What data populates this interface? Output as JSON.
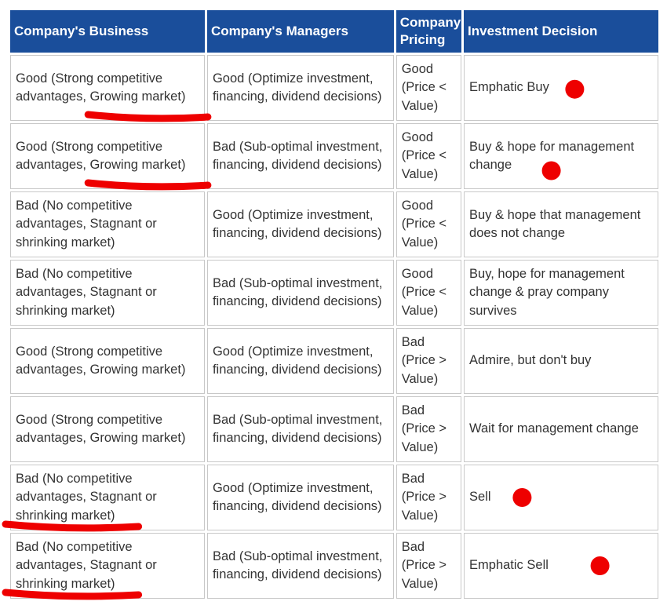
{
  "table": {
    "headers": [
      "Company's Business",
      "Company's Managers",
      "Company Pricing",
      "Investment Decision"
    ],
    "rows": [
      [
        "Good (Strong competitive advantages, Growing market)",
        "Good (Optimize investment, financing, dividend decisions)",
        "Good (Price < Value)",
        "Emphatic Buy"
      ],
      [
        "Good (Strong competitive advantages, Growing market)",
        "Bad (Sub-optimal investment, financing, dividend decisions)",
        "Good (Price < Value)",
        "Buy & hope for management change"
      ],
      [
        "Bad (No competitive advantages, Stagnant or shrinking market)",
        "Good (Optimize investment, financing, dividend decisions)",
        "Good (Price < Value)",
        "Buy & hope that management does not change"
      ],
      [
        "Bad (No competitive advantages, Stagnant or shrinking market)",
        "Bad (Sub-optimal investment, financing, dividend decisions)",
        "Good (Price < Value)",
        "Buy, hope for management change & pray company survives"
      ],
      [
        "Good (Strong competitive advantages, Growing market)",
        "Good (Optimize investment, financing, dividend decisions)",
        "Bad (Price > Value)",
        "Admire, but don't buy"
      ],
      [
        "Good (Strong competitive advantages, Growing market)",
        "Bad (Sub-optimal investment, financing, dividend decisions)",
        "Bad (Price > Value)",
        "Wait for management change"
      ],
      [
        "Bad (No competitive advantages, Stagnant or shrinking market)",
        "Good (Optimize investment, financing, dividend decisions)",
        "Bad (Price > Value)",
        "Sell"
      ],
      [
        "Bad (No competitive advantages, Stagnant or shrinking market)",
        "Bad (Sub-optimal investment, financing, dividend decisions)",
        "Bad (Price > Value)",
        "Emphatic Sell"
      ]
    ]
  },
  "colors": {
    "header_bg": "#1a4e9b",
    "header_text": "#ffffff",
    "cell_border": "#c8c8c8",
    "annotation_red": "#ee0000"
  },
  "annotations": {
    "marked_decision_rows": [
      1,
      2,
      7,
      8
    ],
    "underlined_business_rows": [
      1,
      2,
      7,
      8
    ]
  }
}
